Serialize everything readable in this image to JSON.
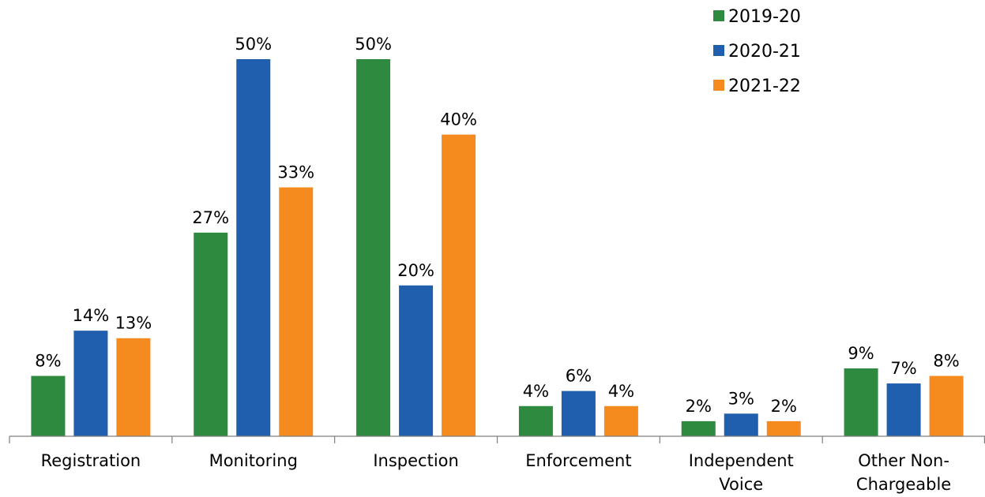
{
  "chart_data": {
    "type": "bar",
    "categories": [
      [
        "Registration"
      ],
      [
        "Monitoring"
      ],
      [
        "Inspection"
      ],
      [
        "Enforcement"
      ],
      [
        "Independent",
        "Voice"
      ],
      [
        "Other Non-",
        "Chargeable"
      ]
    ],
    "series": [
      {
        "name": "2019-20",
        "color": "#2d8a3e",
        "values": [
          8,
          27,
          50,
          4,
          2,
          9
        ]
      },
      {
        "name": "2020-21",
        "color": "#1f5fae",
        "values": [
          14,
          50,
          20,
          6,
          3,
          7
        ]
      },
      {
        "name": "2021-22",
        "color": "#f58a1f",
        "values": [
          13,
          33,
          40,
          4,
          2,
          8
        ]
      }
    ],
    "value_suffix": "%",
    "ylim": [
      0,
      50
    ],
    "grid": false,
    "legend_position": "top-right",
    "title": "",
    "xlabel": "",
    "ylabel": ""
  }
}
